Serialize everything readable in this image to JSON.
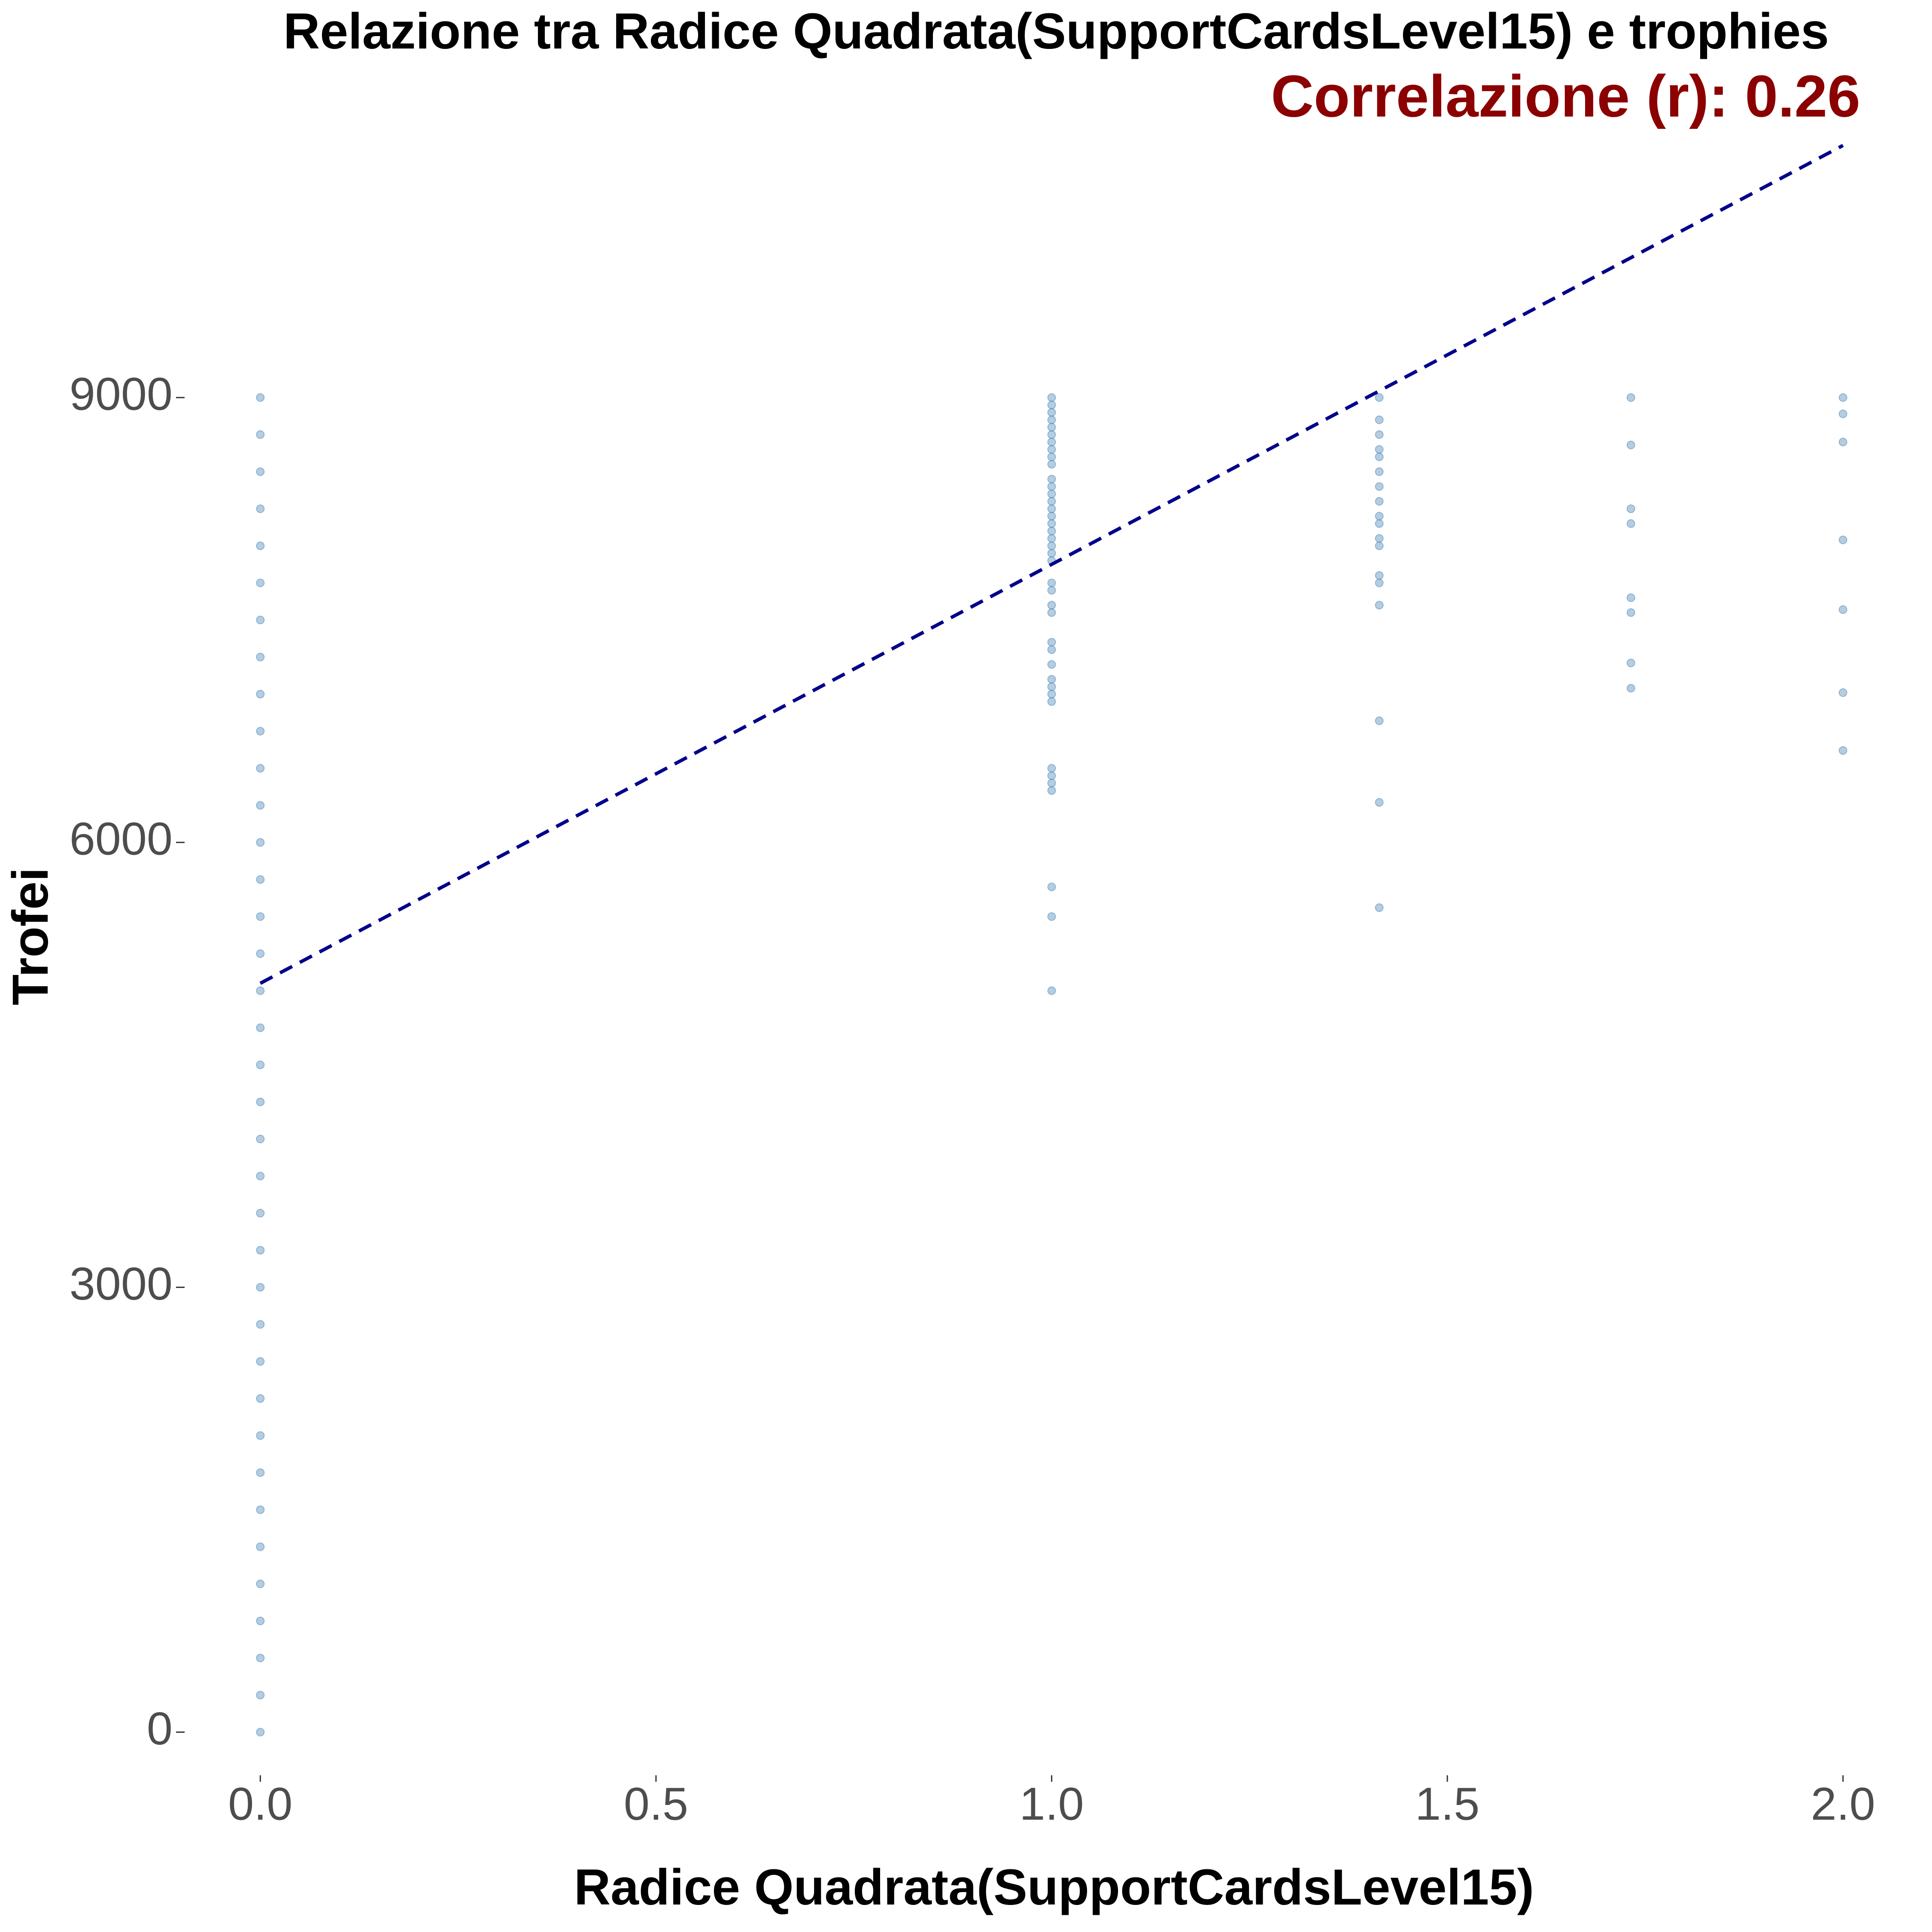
{
  "chart_data": {
    "type": "scatter",
    "title": "Relazione tra Radice Quadrata(SupportCardsLevel15) e trophies",
    "annotation": "Correlazione (r): 0.26",
    "annotation_color": "#8b0000",
    "x_label": "Radice Quadrata(SupportCardsLevel15)",
    "y_label": "Trofei",
    "color": "#4682b4",
    "x": [
      0,
      0,
      0,
      0,
      0,
      0,
      0,
      0,
      0,
      0,
      0,
      0,
      0,
      0,
      0,
      0,
      0,
      0,
      0,
      0,
      0,
      0,
      0,
      0,
      0,
      0,
      0,
      0,
      0,
      0,
      0,
      0,
      0,
      0,
      0,
      0,
      0,
      1,
      1,
      1,
      1,
      1,
      1,
      1,
      1,
      1,
      1,
      1,
      1,
      1,
      1,
      1,
      1,
      1,
      1,
      1,
      1,
      1,
      1,
      1,
      1,
      1,
      1,
      1,
      1,
      1,
      1,
      1,
      1,
      1,
      1,
      1,
      1,
      1,
      1,
      1,
      1,
      1.414,
      1.414,
      1.414,
      1.414,
      1.414,
      1.414,
      1.414,
      1.414,
      1.414,
      1.414,
      1.414,
      1.414,
      1.414,
      1.414,
      1.414,
      1.414,
      1.414,
      1.414,
      1.732,
      1.732,
      1.732,
      1.732,
      1.732,
      1.732,
      1.732,
      1.732,
      2,
      2,
      2,
      2,
      2,
      2,
      2
    ],
    "y": [
      0,
      250,
      500,
      750,
      1000,
      1250,
      1500,
      1750,
      2000,
      2250,
      2500,
      2750,
      3000,
      3250,
      3500,
      3750,
      4000,
      4250,
      4500,
      4750,
      5000,
      5250,
      5500,
      5750,
      6000,
      6250,
      6500,
      6750,
      7000,
      7250,
      7500,
      7750,
      8000,
      8250,
      8500,
      8750,
      9000,
      9000,
      8950,
      8900,
      8850,
      8800,
      8750,
      8700,
      8650,
      8600,
      8550,
      8450,
      8400,
      8350,
      8300,
      8250,
      8200,
      8150,
      8100,
      8050,
      8000,
      7950,
      7900,
      7750,
      7700,
      7600,
      7550,
      7350,
      7300,
      7200,
      7100,
      7050,
      7000,
      6950,
      6500,
      6450,
      6400,
      6350,
      5700,
      5500,
      5000,
      9000,
      8850,
      8750,
      8650,
      8600,
      8500,
      8400,
      8300,
      8200,
      8150,
      8050,
      8000,
      7800,
      7750,
      7600,
      6820,
      6270,
      5560,
      9000,
      8680,
      8250,
      8150,
      7650,
      7550,
      7210,
      7040,
      9000,
      8890,
      8700,
      8040,
      7570,
      7010,
      6620
    ],
    "trend_line": {
      "x": [
        0,
        2
      ],
      "values": [
        5050,
        10700
      ],
      "color": "#00008b"
    },
    "xlim": [
      -0.1,
      2.1
    ],
    "ylim": [
      -534,
      11206
    ],
    "xticks": [
      {
        "value": 0,
        "label": "0.0"
      },
      0.5,
      {
        "value": 1,
        "label": "1.0"
      },
      1.5,
      {
        "value": 2,
        "label": "2.0"
      }
    ],
    "yticks": [
      0,
      3000,
      6000,
      9000
    ]
  }
}
